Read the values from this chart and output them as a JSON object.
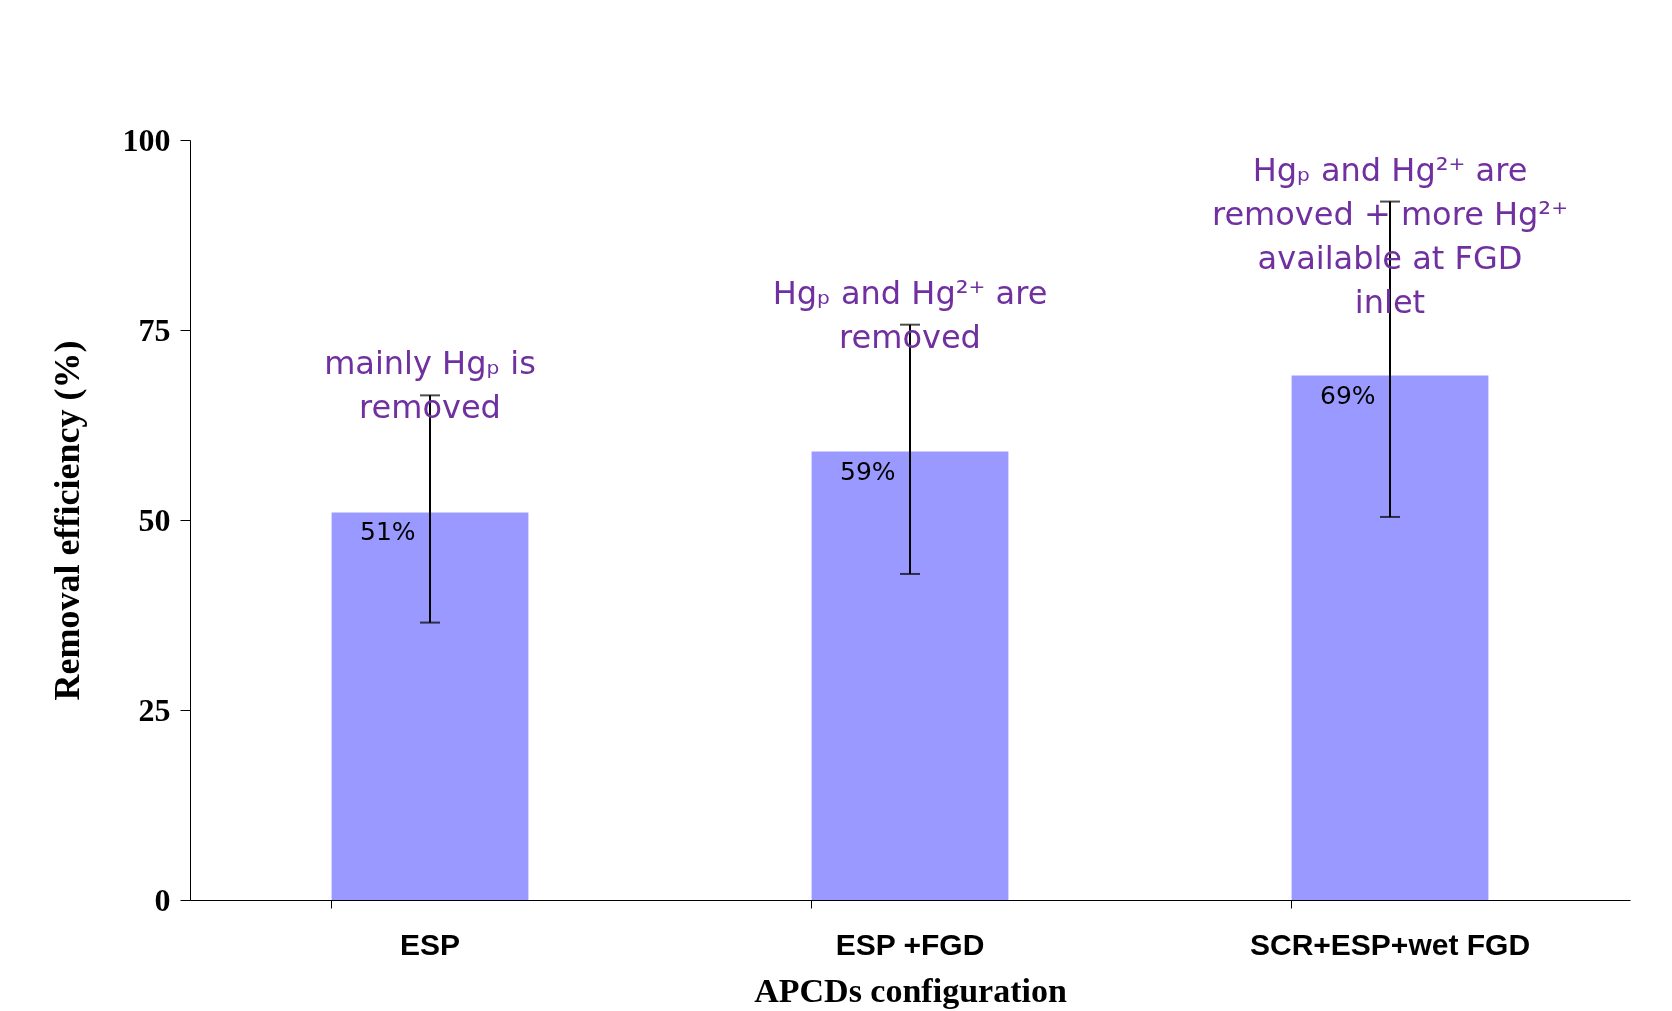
{
  "chart_data": {
    "type": "bar",
    "xlabel": "APCDs configuration",
    "ylabel": "Removal efficiency (%)",
    "categories": [
      "ESP",
      "ESP +FGD",
      "SCR+ESP+wet FGD"
    ],
    "values": [
      51,
      59,
      69
    ],
    "color": "#9999ff",
    "errors": [
      [
        36.5,
        66.4
      ],
      [
        42.9,
        75.7
      ],
      [
        50.4,
        91.9
      ]
    ],
    "value_labels": [
      "51%",
      "59%",
      "69%"
    ],
    "annotations": [
      "mainly Hgₚ is removed",
      "Hgₚ and Hg²⁺ are removed",
      "Hgₚ and Hg²⁺ are removed + more Hg²⁺ available at FGD inlet"
    ],
    "ylim": [
      0,
      100
    ],
    "yticks": [
      0,
      25,
      50,
      75,
      100
    ],
    "grid": false
  }
}
